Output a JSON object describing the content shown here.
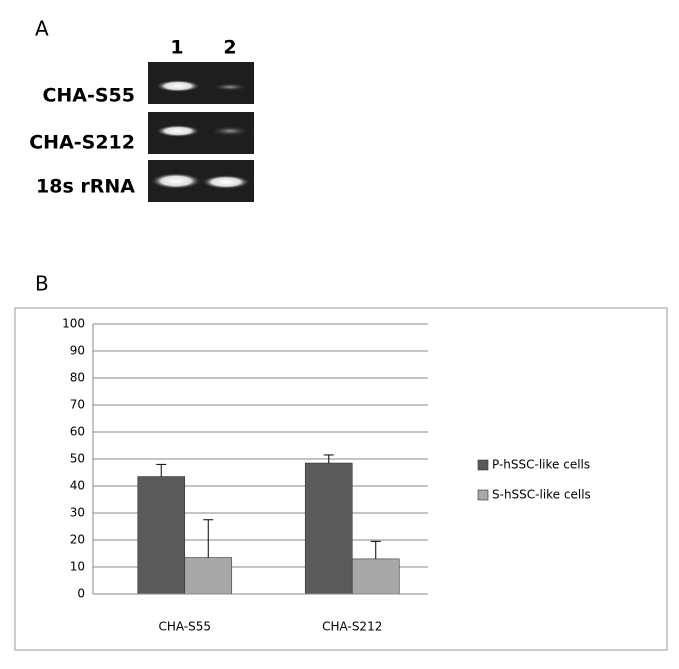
{
  "panel_a": {
    "label": "A",
    "lanes": [
      "1",
      "2"
    ],
    "rows": [
      "CHA-S55",
      "CHA-S212",
      "18s rRNA"
    ]
  },
  "chart_data": {
    "type": "bar",
    "panel_label": "B",
    "categories": [
      "CHA-S55",
      "CHA-S212"
    ],
    "series": [
      {
        "name": "P-hSSC-like cells",
        "color": "#5a5a5a",
        "values": [
          43.5,
          48.5
        ],
        "errors": [
          4.5,
          3
        ]
      },
      {
        "name": "S-hSSC-like cells",
        "color": "#a8a8a8",
        "values": [
          13.5,
          13
        ],
        "errors": [
          14,
          6.5
        ]
      }
    ],
    "ylim": [
      0,
      100
    ],
    "yticks": [
      0,
      10,
      20,
      30,
      40,
      50,
      60,
      70,
      80,
      90,
      100
    ],
    "grid": true,
    "legend": "right"
  }
}
